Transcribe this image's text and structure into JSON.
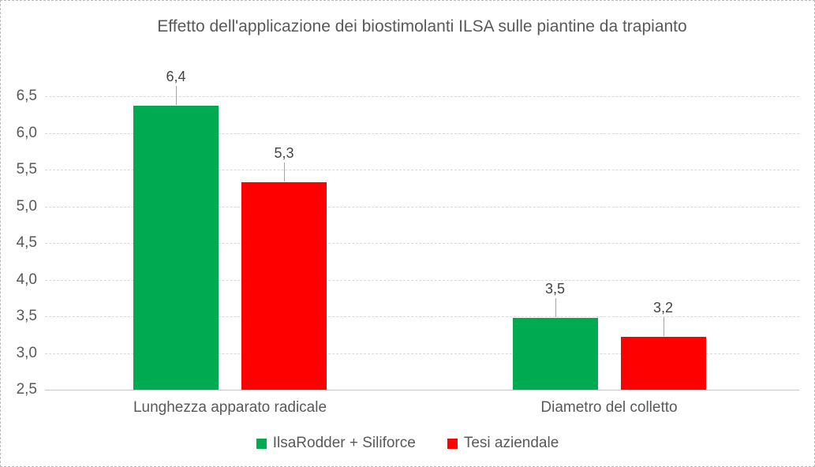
{
  "chart_data": {
    "type": "bar",
    "title": "Effetto dell'applicazione dei biostimolanti ILSA sulle piantine da trapianto",
    "categories": [
      "Lunghezza apparato radicale",
      "Diametro del colletto"
    ],
    "series": [
      {
        "name": "IlsaRodder + Siliforce",
        "color": "#00AA50",
        "values": [
          6.4,
          3.5
        ],
        "plotted_values": [
          6.37,
          3.48
        ],
        "data_labels": [
          "6,4",
          "3,5"
        ]
      },
      {
        "name": "Tesi aziendale",
        "color": "#FF0000",
        "values": [
          5.3,
          3.2
        ],
        "plotted_values": [
          5.33,
          3.22
        ],
        "data_labels": [
          "5,3",
          "3,2"
        ]
      }
    ],
    "y_axis": {
      "min": 2.5,
      "max": 6.5,
      "step": 0.5,
      "tick_labels": [
        "6,5",
        "6,0",
        "5,5",
        "5,0",
        "4,5",
        "4,0",
        "3,5",
        "3,0",
        "2,5"
      ]
    },
    "grid": "horizontal-dotted",
    "legend_position": "bottom",
    "decimal_separator": ",",
    "colors": {
      "text": "#595959",
      "data_label": "#444444",
      "gridline": "#D9D9D9",
      "axis_line": "#C6C6C6",
      "leader_line": "#A6A6A6"
    }
  }
}
